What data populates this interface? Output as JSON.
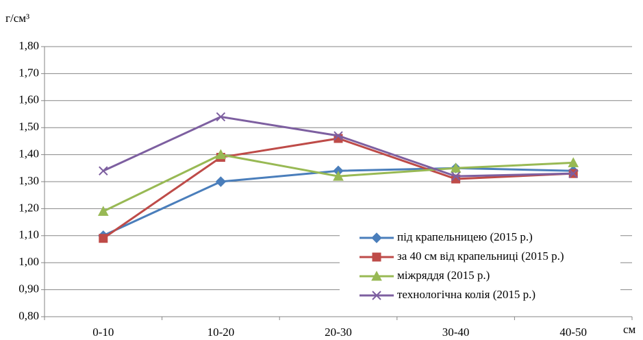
{
  "chart_data": {
    "type": "line",
    "y_label": "г/см³",
    "x_label": "см",
    "categories": [
      "0-10",
      "10-20",
      "20-30",
      "30-40",
      "40-50"
    ],
    "series": [
      {
        "name": "під крапельницею (2015 р.)",
        "color": "#4a7ebb",
        "marker": "diamond",
        "values": [
          1.1,
          1.3,
          1.34,
          1.35,
          1.34
        ]
      },
      {
        "name": "за 40 см від крапельниці (2015 р.)",
        "color": "#be4b48",
        "marker": "square",
        "values": [
          1.09,
          1.39,
          1.46,
          1.31,
          1.33
        ]
      },
      {
        "name": "міжряддя (2015 р.)",
        "color": "#98b954",
        "marker": "triangle",
        "values": [
          1.19,
          1.4,
          1.32,
          1.35,
          1.37
        ]
      },
      {
        "name": "технологічна колія (2015 р.)",
        "color": "#7d5fa0",
        "marker": "x",
        "values": [
          1.34,
          1.54,
          1.47,
          1.32,
          1.33
        ]
      }
    ],
    "ylim": [
      0.8,
      1.8
    ],
    "yticks": [
      {
        "value": 0.8,
        "label": "0,80"
      },
      {
        "value": 0.9,
        "label": "0,90"
      },
      {
        "value": 1.0,
        "label": "1,00"
      },
      {
        "value": 1.1,
        "label": "1,10"
      },
      {
        "value": 1.2,
        "label": "1,20"
      },
      {
        "value": 1.3,
        "label": "1,30"
      },
      {
        "value": 1.4,
        "label": "1,40"
      },
      {
        "value": 1.5,
        "label": "1,50"
      },
      {
        "value": 1.6,
        "label": "1,60"
      },
      {
        "value": 1.7,
        "label": "1,70"
      },
      {
        "value": 1.8,
        "label": "1,80"
      }
    ],
    "grid": true
  }
}
